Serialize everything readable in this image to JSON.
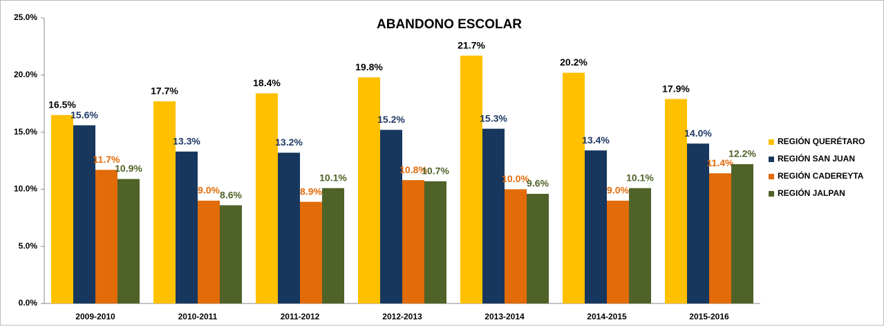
{
  "chart_data": {
    "type": "bar",
    "title": "ABANDONO ESCOLAR",
    "categories": [
      "2009-2010",
      "2010-2011",
      "2011-2012",
      "2012-2013",
      "2013-2014",
      "2014-2015",
      "2015-2016"
    ],
    "series": [
      {
        "name": "REGIÓN QUERÉTARO",
        "color": "#ffc000",
        "label_color": "#000000",
        "values": [
          16.5,
          17.7,
          18.4,
          19.8,
          21.7,
          20.2,
          17.9
        ],
        "value_labels": [
          "16.5%",
          "17.7%",
          "18.4%",
          "19.8%",
          "21.7%",
          "20.2%",
          "17.9%"
        ]
      },
      {
        "name": "REGIÓN SAN JUAN",
        "color": "#17375e",
        "label_color": "#1f3864",
        "values": [
          15.6,
          13.3,
          13.2,
          15.2,
          15.3,
          13.4,
          14.0
        ],
        "value_labels": [
          "15.6%",
          "13.3%",
          "13.2%",
          "15.2%",
          "15.3%",
          "13.4%",
          "14.0%"
        ]
      },
      {
        "name": "REGIÓN CADEREYTA",
        "color": "#e26b0a",
        "label_color": "#e26b0a",
        "values": [
          11.7,
          9.0,
          8.9,
          10.8,
          10.0,
          9.0,
          11.4
        ],
        "value_labels": [
          "11.7%",
          "9.0%",
          "8.9%",
          "10.8%",
          "10.0%",
          "9.0%",
          "11.4%"
        ]
      },
      {
        "name": "REGIÓN JALPAN",
        "color": "#4f6228",
        "label_color": "#4f6228",
        "values": [
          10.9,
          8.6,
          10.1,
          10.7,
          9.6,
          10.1,
          12.2
        ],
        "value_labels": [
          "10.9%",
          "8.6%",
          "10.1%",
          "10.7%",
          "9.6%",
          "10.1%",
          "12.2%"
        ]
      }
    ],
    "ylim": [
      0,
      25
    ],
    "yticks": [
      {
        "value": 0,
        "label": "0.0%"
      },
      {
        "value": 5,
        "label": "5.0%"
      },
      {
        "value": 10,
        "label": "10.0%"
      },
      {
        "value": 15,
        "label": "15.0%"
      },
      {
        "value": 20,
        "label": "20.0%"
      },
      {
        "value": 25,
        "label": "25.0%"
      }
    ],
    "legend": "right"
  }
}
